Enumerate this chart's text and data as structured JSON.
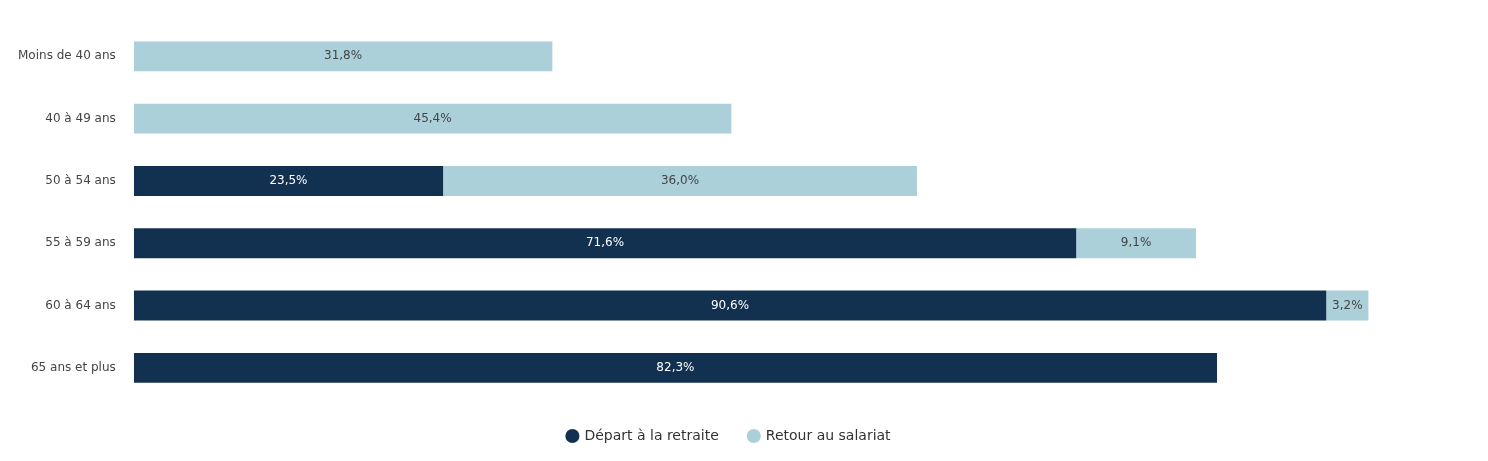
{
  "chart_data": {
    "type": "bar",
    "orientation": "horizontal",
    "stacked": true,
    "legend": "bottom",
    "categories": [
      "Moins de 40 ans",
      "40 à 49 ans",
      "50 à 54 ans",
      "55 à 59 ans",
      "60 à 64 ans",
      "65 ans et plus"
    ],
    "series": [
      {
        "name": "Départ à la retraite",
        "color": "#12304f",
        "values": [
          null,
          null,
          23.5,
          71.6,
          90.6,
          82.3
        ],
        "value_labels": [
          null,
          null,
          "23,5%",
          "71,6%",
          "90,6%",
          "82,3%"
        ]
      },
      {
        "name": "Retour au salariat",
        "color": "#abd0d9",
        "values": [
          31.8,
          45.4,
          36.0,
          9.1,
          3.2,
          null
        ],
        "value_labels": [
          "31,8%",
          "45,4%",
          "36,0%",
          "9,1%",
          "3,2%",
          null
        ]
      }
    ]
  }
}
